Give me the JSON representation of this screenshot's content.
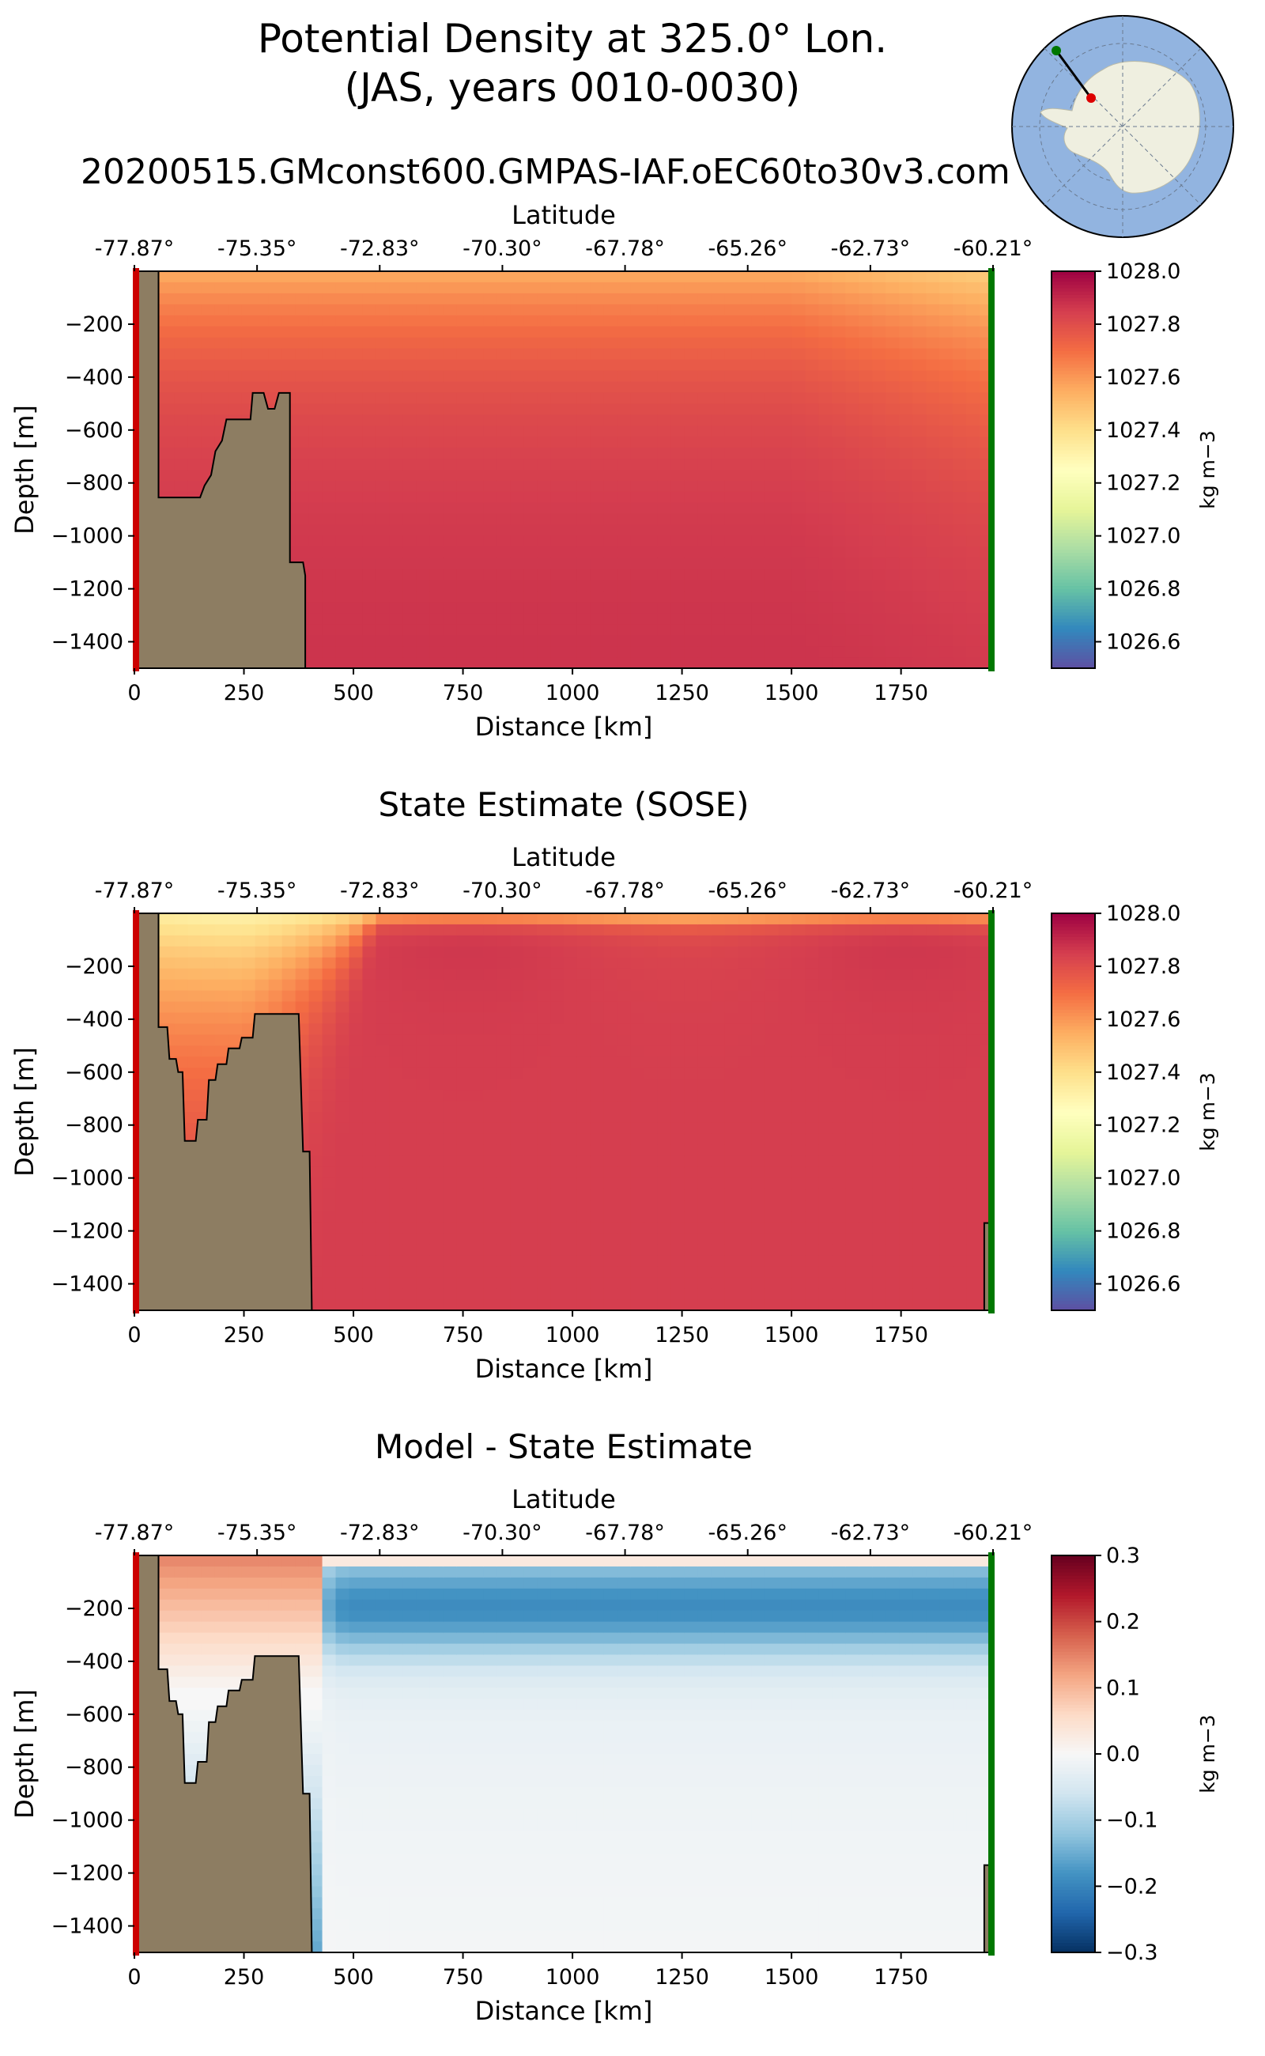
{
  "figure": {
    "title_line1": "Potential Density at 325.0° Lon.",
    "title_line2": "(JAS, years 0010-0030)",
    "subtitle": "20200515.GMconst600.GMPAS-IAF.oEC60to30v3.com"
  },
  "colors": {
    "bathymetry": "#8d7d62",
    "start_marker": "#cc0000",
    "end_marker": "#007700",
    "map_ocean": "#92b4e0",
    "map_land": "#efefe0"
  },
  "chart_data": [
    {
      "type": "heatmap",
      "panel": "model",
      "title": "",
      "xlabel": "Distance [km]",
      "ylabel": "Depth [m]",
      "top_axis_label": "Latitude",
      "xlim": [
        0,
        1960
      ],
      "ylim": [
        -1500,
        0
      ],
      "x_ticks": [
        0,
        250,
        500,
        750,
        1000,
        1250,
        1500,
        1750
      ],
      "x_tick_labels": [
        "0",
        "250",
        "500",
        "750",
        "1000",
        "1250",
        "1500",
        "1750"
      ],
      "y_ticks": [
        -200,
        -400,
        -600,
        -800,
        -1000,
        -1200,
        -1400
      ],
      "y_tick_labels": [
        "−200",
        "−400",
        "−600",
        "−800",
        "−1000",
        "−1200",
        "−1400"
      ],
      "lat_ticks": [
        0,
        280,
        560,
        840,
        1120,
        1400,
        1680,
        1960
      ],
      "lat_tick_labels": [
        "-77.87°",
        "-75.35°",
        "-72.83°",
        "-70.30°",
        "-67.78°",
        "-65.26°",
        "-62.73°",
        "-60.21°"
      ],
      "colorbar": {
        "label": "kg m−3",
        "range": [
          1026.5,
          1028.0
        ],
        "ticks": [
          1028.0,
          1027.8,
          1027.6,
          1027.4,
          1027.2,
          1027.0,
          1026.8,
          1026.6
        ],
        "tick_labels": [
          "1028.0",
          "1027.8",
          "1027.6",
          "1027.4",
          "1027.2",
          "1027.0",
          "1026.8",
          "1026.6"
        ],
        "colormap": "spectral_r"
      },
      "field": {
        "kind": "model",
        "surface": 1027.55,
        "surface_east": 1027.45,
        "deep": 1027.88
      },
      "bathymetry": [
        [
          0,
          0
        ],
        [
          55,
          0
        ],
        [
          55,
          -855
        ],
        [
          150,
          -855
        ],
        [
          160,
          -810
        ],
        [
          175,
          -770
        ],
        [
          185,
          -680
        ],
        [
          200,
          -640
        ],
        [
          210,
          -560
        ],
        [
          265,
          -560
        ],
        [
          270,
          -460
        ],
        [
          295,
          -460
        ],
        [
          305,
          -520
        ],
        [
          320,
          -520
        ],
        [
          330,
          -460
        ],
        [
          355,
          -460
        ],
        [
          355,
          -1100
        ],
        [
          385,
          -1100
        ],
        [
          390,
          -1150
        ],
        [
          390,
          -1500
        ]
      ],
      "east_bathymetry": []
    },
    {
      "type": "heatmap",
      "panel": "sose",
      "title": "State Estimate (SOSE)",
      "xlabel": "Distance [km]",
      "ylabel": "Depth [m]",
      "top_axis_label": "Latitude",
      "xlim": [
        0,
        1960
      ],
      "ylim": [
        -1500,
        0
      ],
      "x_ticks": [
        0,
        250,
        500,
        750,
        1000,
        1250,
        1500,
        1750
      ],
      "x_tick_labels": [
        "0",
        "250",
        "500",
        "750",
        "1000",
        "1250",
        "1500",
        "1750"
      ],
      "y_ticks": [
        -200,
        -400,
        -600,
        -800,
        -1000,
        -1200,
        -1400
      ],
      "y_tick_labels": [
        "−200",
        "−400",
        "−600",
        "−800",
        "−1000",
        "−1200",
        "−1400"
      ],
      "lat_ticks": [
        0,
        280,
        560,
        840,
        1120,
        1400,
        1680,
        1960
      ],
      "lat_tick_labels": [
        "-77.87°",
        "-75.35°",
        "-72.83°",
        "-70.30°",
        "-67.78°",
        "-65.26°",
        "-62.73°",
        "-60.21°"
      ],
      "colorbar": {
        "label": "kg m−3",
        "range": [
          1026.5,
          1028.0
        ],
        "ticks": [
          1028.0,
          1027.8,
          1027.6,
          1027.4,
          1027.2,
          1027.0,
          1026.8,
          1026.6
        ],
        "tick_labels": [
          "1028.0",
          "1027.8",
          "1027.6",
          "1027.4",
          "1027.2",
          "1027.0",
          "1026.8",
          "1026.6"
        ],
        "colormap": "spectral_r"
      },
      "field": {
        "kind": "sose",
        "surface": 1027.35,
        "deep": 1027.85
      },
      "bathymetry": [
        [
          0,
          0
        ],
        [
          55,
          0
        ],
        [
          55,
          -430
        ],
        [
          75,
          -430
        ],
        [
          80,
          -550
        ],
        [
          95,
          -550
        ],
        [
          100,
          -600
        ],
        [
          110,
          -600
        ],
        [
          115,
          -860
        ],
        [
          140,
          -860
        ],
        [
          145,
          -780
        ],
        [
          165,
          -780
        ],
        [
          170,
          -630
        ],
        [
          185,
          -630
        ],
        [
          190,
          -570
        ],
        [
          210,
          -570
        ],
        [
          215,
          -510
        ],
        [
          240,
          -510
        ],
        [
          245,
          -470
        ],
        [
          270,
          -470
        ],
        [
          275,
          -380
        ],
        [
          375,
          -380
        ],
        [
          385,
          -900
        ],
        [
          400,
          -900
        ],
        [
          405,
          -1500
        ]
      ],
      "east_bathymetry": [
        [
          1940,
          -1500
        ],
        [
          1940,
          -1170
        ],
        [
          1960,
          -1170
        ],
        [
          1960,
          -1500
        ]
      ]
    },
    {
      "type": "heatmap",
      "panel": "diff",
      "title": "Model - State Estimate",
      "xlabel": "Distance [km]",
      "ylabel": "Depth [m]",
      "top_axis_label": "Latitude",
      "xlim": [
        0,
        1960
      ],
      "ylim": [
        -1500,
        0
      ],
      "x_ticks": [
        0,
        250,
        500,
        750,
        1000,
        1250,
        1500,
        1750
      ],
      "x_tick_labels": [
        "0",
        "250",
        "500",
        "750",
        "1000",
        "1250",
        "1500",
        "1750"
      ],
      "y_ticks": [
        -200,
        -400,
        -600,
        -800,
        -1000,
        -1200,
        -1400
      ],
      "y_tick_labels": [
        "−200",
        "−400",
        "−600",
        "−800",
        "−1000",
        "−1200",
        "−1400"
      ],
      "lat_ticks": [
        0,
        280,
        560,
        840,
        1120,
        1400,
        1680,
        1960
      ],
      "lat_tick_labels": [
        "-77.87°",
        "-75.35°",
        "-72.83°",
        "-70.30°",
        "-67.78°",
        "-65.26°",
        "-62.73°",
        "-60.21°"
      ],
      "colorbar": {
        "label": "kg m−3",
        "range": [
          -0.3,
          0.3
        ],
        "ticks": [
          0.3,
          0.2,
          0.1,
          0.0,
          -0.1,
          -0.2,
          -0.3
        ],
        "tick_labels": [
          "0.3",
          "0.2",
          "0.1",
          "0.0",
          "−0.1",
          "−0.2",
          "−0.3"
        ],
        "colormap": "rdbu_r"
      },
      "field": {
        "kind": "diff",
        "shelf_max": 0.15,
        "open_min": -0.15
      },
      "bathymetry": [
        [
          0,
          0
        ],
        [
          55,
          0
        ],
        [
          55,
          -430
        ],
        [
          75,
          -430
        ],
        [
          80,
          -550
        ],
        [
          95,
          -550
        ],
        [
          100,
          -600
        ],
        [
          110,
          -600
        ],
        [
          115,
          -860
        ],
        [
          140,
          -860
        ],
        [
          145,
          -780
        ],
        [
          165,
          -780
        ],
        [
          170,
          -630
        ],
        [
          185,
          -630
        ],
        [
          190,
          -570
        ],
        [
          210,
          -570
        ],
        [
          215,
          -510
        ],
        [
          240,
          -510
        ],
        [
          245,
          -470
        ],
        [
          270,
          -470
        ],
        [
          275,
          -380
        ],
        [
          375,
          -380
        ],
        [
          385,
          -900
        ],
        [
          400,
          -900
        ],
        [
          405,
          -1500
        ]
      ],
      "east_bathymetry": [
        [
          1940,
          -1500
        ],
        [
          1940,
          -1170
        ],
        [
          1960,
          -1170
        ],
        [
          1960,
          -1500
        ]
      ]
    }
  ]
}
